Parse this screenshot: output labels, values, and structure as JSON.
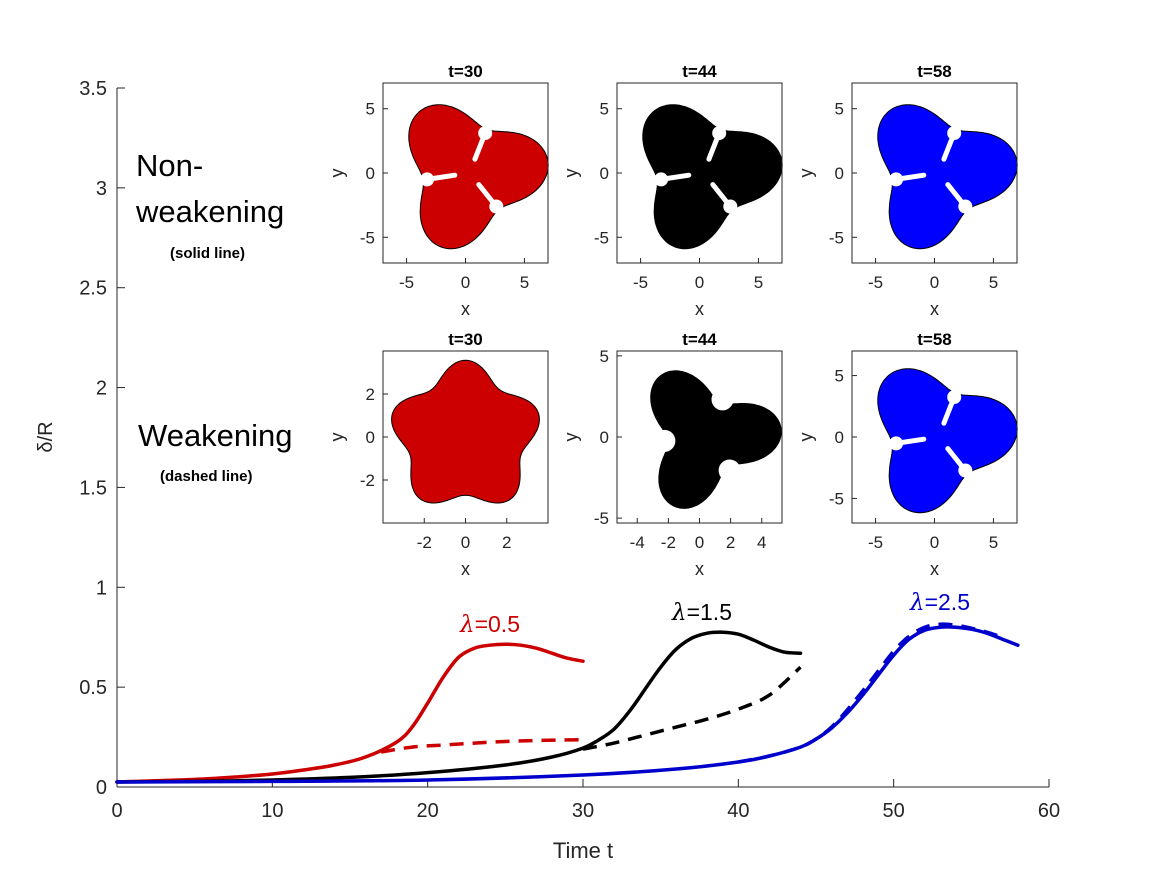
{
  "chart_data": {
    "type": "line",
    "xlabel": "Time t",
    "ylabel": "δ/R",
    "xlim": [
      0,
      60
    ],
    "ylim": [
      0,
      3.5
    ],
    "xticks": [
      0,
      10,
      20,
      30,
      40,
      50,
      60
    ],
    "yticks": [
      0,
      0.5,
      1,
      1.5,
      2,
      2.5,
      3,
      3.5
    ],
    "xtick_labels": [
      "0",
      "10",
      "20",
      "30",
      "40",
      "50",
      "60"
    ],
    "ytick_labels": [
      "0",
      "0.5",
      "1",
      "1.5",
      "2",
      "2.5",
      "3",
      "3.5"
    ],
    "grid": false,
    "row_labels": {
      "nonweakening": {
        "line1": "Non-",
        "line2": "weakening",
        "note": "(solid line)"
      },
      "weakening": {
        "line1": "Weakening",
        "note": "(dashed line)"
      }
    },
    "series": [
      {
        "label": "λ=0.5",
        "lambda_symbol": "λ",
        "lambda_value": "=0.5",
        "color": "#cc0000",
        "solid": {
          "x": [
            0,
            2,
            4,
            6,
            8,
            10,
            12,
            14,
            16,
            18,
            19,
            20,
            21,
            22,
            23,
            24,
            25,
            26,
            27,
            28,
            29,
            30
          ],
          "y": [
            0.025,
            0.03,
            0.035,
            0.042,
            0.052,
            0.065,
            0.085,
            0.11,
            0.15,
            0.225,
            0.3,
            0.42,
            0.55,
            0.65,
            0.695,
            0.71,
            0.715,
            0.71,
            0.695,
            0.67,
            0.645,
            0.63
          ]
        },
        "dashed": {
          "x": [
            17,
            19,
            21,
            23,
            25,
            27,
            29,
            30
          ],
          "y": [
            0.175,
            0.2,
            0.21,
            0.22,
            0.228,
            0.233,
            0.236,
            0.237
          ]
        }
      },
      {
        "label": "λ=1.5",
        "lambda_symbol": "λ",
        "lambda_value": "=1.5",
        "color": "#000000",
        "solid": {
          "x": [
            0,
            5,
            10,
            15,
            20,
            25,
            28,
            30,
            31,
            32,
            33,
            34,
            35,
            36,
            37,
            38,
            39,
            40,
            41,
            42,
            43,
            44
          ],
          "y": [
            0.025,
            0.028,
            0.035,
            0.048,
            0.072,
            0.11,
            0.15,
            0.195,
            0.235,
            0.29,
            0.38,
            0.49,
            0.6,
            0.69,
            0.745,
            0.77,
            0.775,
            0.765,
            0.735,
            0.7,
            0.675,
            0.67
          ]
        },
        "dashed": {
          "x": [
            30,
            32,
            34,
            36,
            38,
            40,
            42,
            44
          ],
          "y": [
            0.19,
            0.22,
            0.26,
            0.3,
            0.34,
            0.39,
            0.46,
            0.6
          ]
        }
      },
      {
        "label": "λ=2.5",
        "lambda_symbol": "λ",
        "lambda_value": "=2.5",
        "color": "#0000cc",
        "solid": {
          "x": [
            0,
            10,
            20,
            30,
            36,
            40,
            42,
            44,
            45,
            46,
            47,
            48,
            49,
            50,
            51,
            52,
            53,
            54,
            55,
            56,
            57,
            58
          ],
          "y": [
            0.025,
            0.028,
            0.035,
            0.06,
            0.09,
            0.125,
            0.155,
            0.2,
            0.24,
            0.295,
            0.37,
            0.46,
            0.56,
            0.66,
            0.74,
            0.785,
            0.8,
            0.8,
            0.79,
            0.77,
            0.74,
            0.71
          ]
        },
        "dashed": {
          "x": [
            40,
            42,
            44,
            45,
            46,
            47,
            48,
            49,
            50,
            51,
            52,
            53,
            54,
            55,
            56,
            57
          ],
          "y": [
            0.125,
            0.155,
            0.2,
            0.24,
            0.3,
            0.385,
            0.48,
            0.58,
            0.68,
            0.755,
            0.8,
            0.815,
            0.81,
            0.795,
            0.775,
            0.75
          ]
        }
      }
    ],
    "insets": [
      {
        "title": "t=30",
        "color": "#cc0000",
        "xlabel": "x",
        "ylabel": "y",
        "lim": 7,
        "xticks": [
          -5,
          0,
          5
        ],
        "yticks": [
          -5,
          0,
          5
        ],
        "xtick_labels": [
          "-5",
          "0",
          "5"
        ],
        "ytick_labels": [
          "-5",
          "0",
          "5"
        ],
        "shape": "three-lobed fingers"
      },
      {
        "title": "t=44",
        "color": "#000000",
        "xlabel": "x",
        "ylabel": "y",
        "lim": 7,
        "xticks": [
          -5,
          0,
          5
        ],
        "yticks": [
          -5,
          0,
          5
        ],
        "xtick_labels": [
          "-5",
          "0",
          "5"
        ],
        "ytick_labels": [
          "-5",
          "0",
          "5"
        ],
        "shape": "three-lobed fingers"
      },
      {
        "title": "t=58",
        "color": "#0000ff",
        "xlabel": "x",
        "ylabel": "y",
        "lim": 7,
        "xticks": [
          -5,
          0,
          5
        ],
        "yticks": [
          -5,
          0,
          5
        ],
        "xtick_labels": [
          "-5",
          "0",
          "5"
        ],
        "ytick_labels": [
          "-5",
          "0",
          "5"
        ],
        "shape": "three-lobed fingers"
      },
      {
        "title": "t=30",
        "color": "#cc0000",
        "xlabel": "x",
        "ylabel": "y",
        "lim": 4,
        "xticks": [
          -2,
          0,
          2
        ],
        "yticks": [
          -2,
          0,
          2
        ],
        "xtick_labels": [
          "-2",
          "0",
          "2"
        ],
        "ytick_labels": [
          "-2",
          "0",
          "2"
        ],
        "shape": "five-lobed"
      },
      {
        "title": "t=44",
        "color": "#000000",
        "xlabel": "x",
        "ylabel": "y",
        "lim": 5.3,
        "xticks": [
          -4,
          -2,
          0,
          2,
          4
        ],
        "yticks": [
          -5,
          0,
          5
        ],
        "xtick_labels": [
          "-4",
          "-2",
          "0",
          "2",
          "4"
        ],
        "ytick_labels": [
          "-5",
          "0",
          "5"
        ],
        "shape": "three-lobed"
      },
      {
        "title": "t=58",
        "color": "#0000ff",
        "xlabel": "x",
        "ylabel": "y",
        "lim": 7,
        "xticks": [
          -5,
          0,
          5
        ],
        "yticks": [
          -5,
          0,
          5
        ],
        "xtick_labels": [
          "-5",
          "0",
          "5"
        ],
        "ytick_labels": [
          "-5",
          "0",
          "5"
        ],
        "shape": "three-lobed fingers"
      }
    ]
  }
}
